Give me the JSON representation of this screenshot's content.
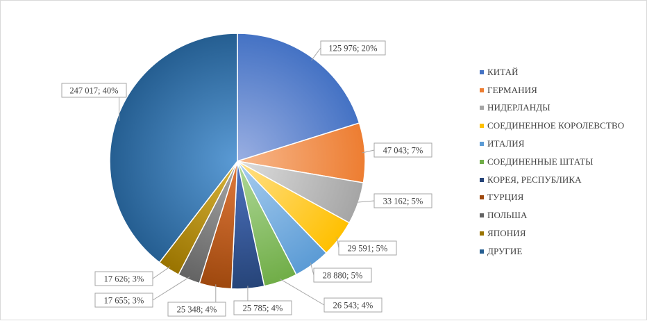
{
  "chart_data": {
    "type": "pie",
    "title": "",
    "legend_position": "right",
    "categories": [
      "КИТАЙ",
      "ГЕРМАНИЯ",
      "НИДЕРЛАНДЫ",
      "СОЕДИНЕННОЕ КОРОЛЕВСТВО",
      "ИТАЛИЯ",
      "СОЕДИНЕННЫЕ ШТАТЫ",
      "КОРЕЯ, РЕСПУБЛИКА",
      "ТУРЦИЯ",
      "ПОЛЬША",
      "ЯПОНИЯ",
      "ДРУГИЕ"
    ],
    "values": [
      125976,
      47043,
      33162,
      29591,
      28880,
      26543,
      25785,
      25348,
      17655,
      17626,
      247017
    ],
    "data_labels": [
      "125 976; 20%",
      "47 043; 7%",
      "33 162; 5%",
      "29 591; 5%",
      "28 880; 5%",
      "26 543; 4%",
      "25 785; 4%",
      "25 348; 4%",
      "17 655; 3%",
      "17 626; 3%",
      "247 017; 40%"
    ],
    "colors": [
      "#4472c4",
      "#ed7d31",
      "#a5a5a5",
      "#ffc000",
      "#5b9bd5",
      "#70ad47",
      "#264478",
      "#9e480e",
      "#636363",
      "#997300",
      "#255e91"
    ],
    "colors_light": [
      "#9aafe2",
      "#f7b88d",
      "#dedede",
      "#ffe08a",
      "#a8cdef",
      "#b0d99a",
      "#4f74c2",
      "#e17a3d",
      "#a8a8a8",
      "#d8b43a",
      "#5b9bd5"
    ]
  }
}
